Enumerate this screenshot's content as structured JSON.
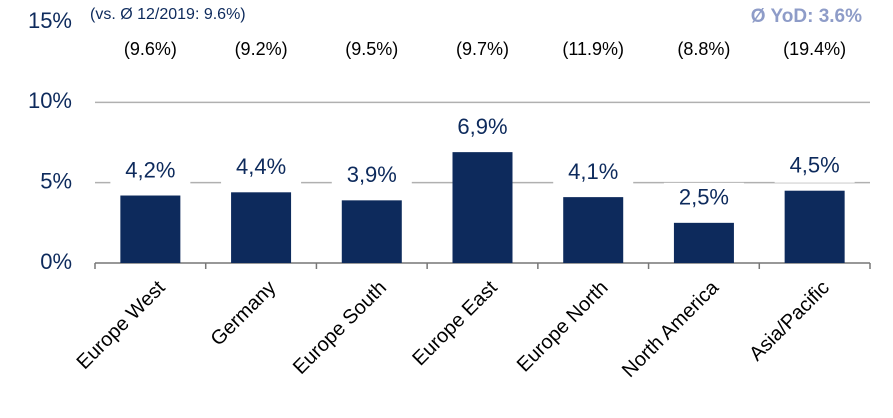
{
  "chart_data": {
    "type": "bar",
    "note": "(vs. Ø 12/2019: 9.6%)",
    "headline": "Ø YoD: 3.6%",
    "categories": [
      "Europe West",
      "Germany",
      "Europe South",
      "Europe East",
      "Europe North",
      "North America",
      "Asia/Pacific"
    ],
    "values": [
      4.2,
      4.4,
      3.9,
      6.9,
      4.1,
      2.5,
      4.5
    ],
    "value_labels": [
      "4,2%",
      "4,4%",
      "3,9%",
      "6,9%",
      "4,1%",
      "2,5%",
      "4,5%"
    ],
    "comparison_labels": [
      "(9.6%)",
      "(9.2%)",
      "(9.5%)",
      "(9.7%)",
      "(11.9%)",
      "(8.8%)",
      "(19.4%)"
    ],
    "color": "#0d2a5c",
    "ylim": [
      0,
      15
    ],
    "yticks": [
      {
        "value": 0,
        "label": "0%"
      },
      {
        "value": 5,
        "label": "5%"
      },
      {
        "value": 10,
        "label": "10%"
      },
      {
        "value": 15,
        "label": "15%"
      }
    ],
    "grid": true
  }
}
